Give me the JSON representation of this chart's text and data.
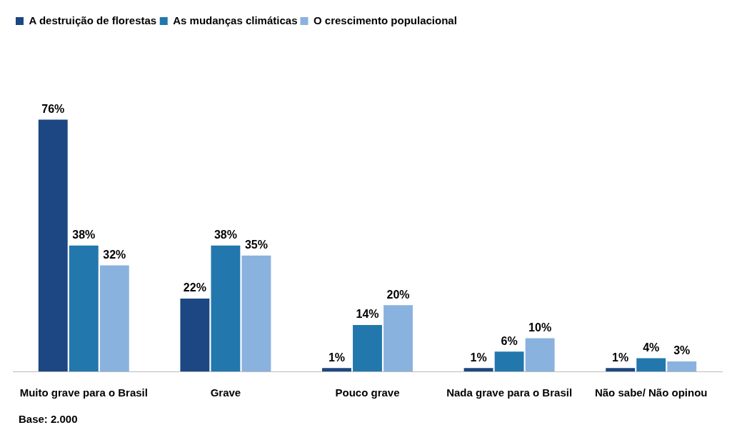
{
  "chart_data": {
    "type": "bar",
    "categories": [
      "Muito grave para o Brasil",
      "Grave",
      "Pouco grave",
      "Nada grave para o Brasil",
      "Não sabe/ Não opinou"
    ],
    "series": [
      {
        "name": "A destruição de florestas",
        "color": "#1c4782",
        "values": [
          76,
          22,
          1,
          1,
          1
        ],
        "value_labels": [
          "76%",
          "22%",
          "1%",
          "1%",
          "1%"
        ]
      },
      {
        "name": "As mudanças climáticas",
        "color": "#2277ad",
        "values": [
          38,
          38,
          14,
          6,
          4
        ],
        "value_labels": [
          "38%",
          "38%",
          "14%",
          "6%",
          "4%"
        ]
      },
      {
        "name": "O crescimento populacional",
        "color": "#8ab2de",
        "values": [
          32,
          35,
          20,
          10,
          3
        ],
        "value_labels": [
          "32%",
          "35%",
          "20%",
          "10%",
          "3%"
        ]
      }
    ],
    "legend": "top left",
    "grid": false,
    "annotations": [
      "Base: 2.000"
    ]
  }
}
